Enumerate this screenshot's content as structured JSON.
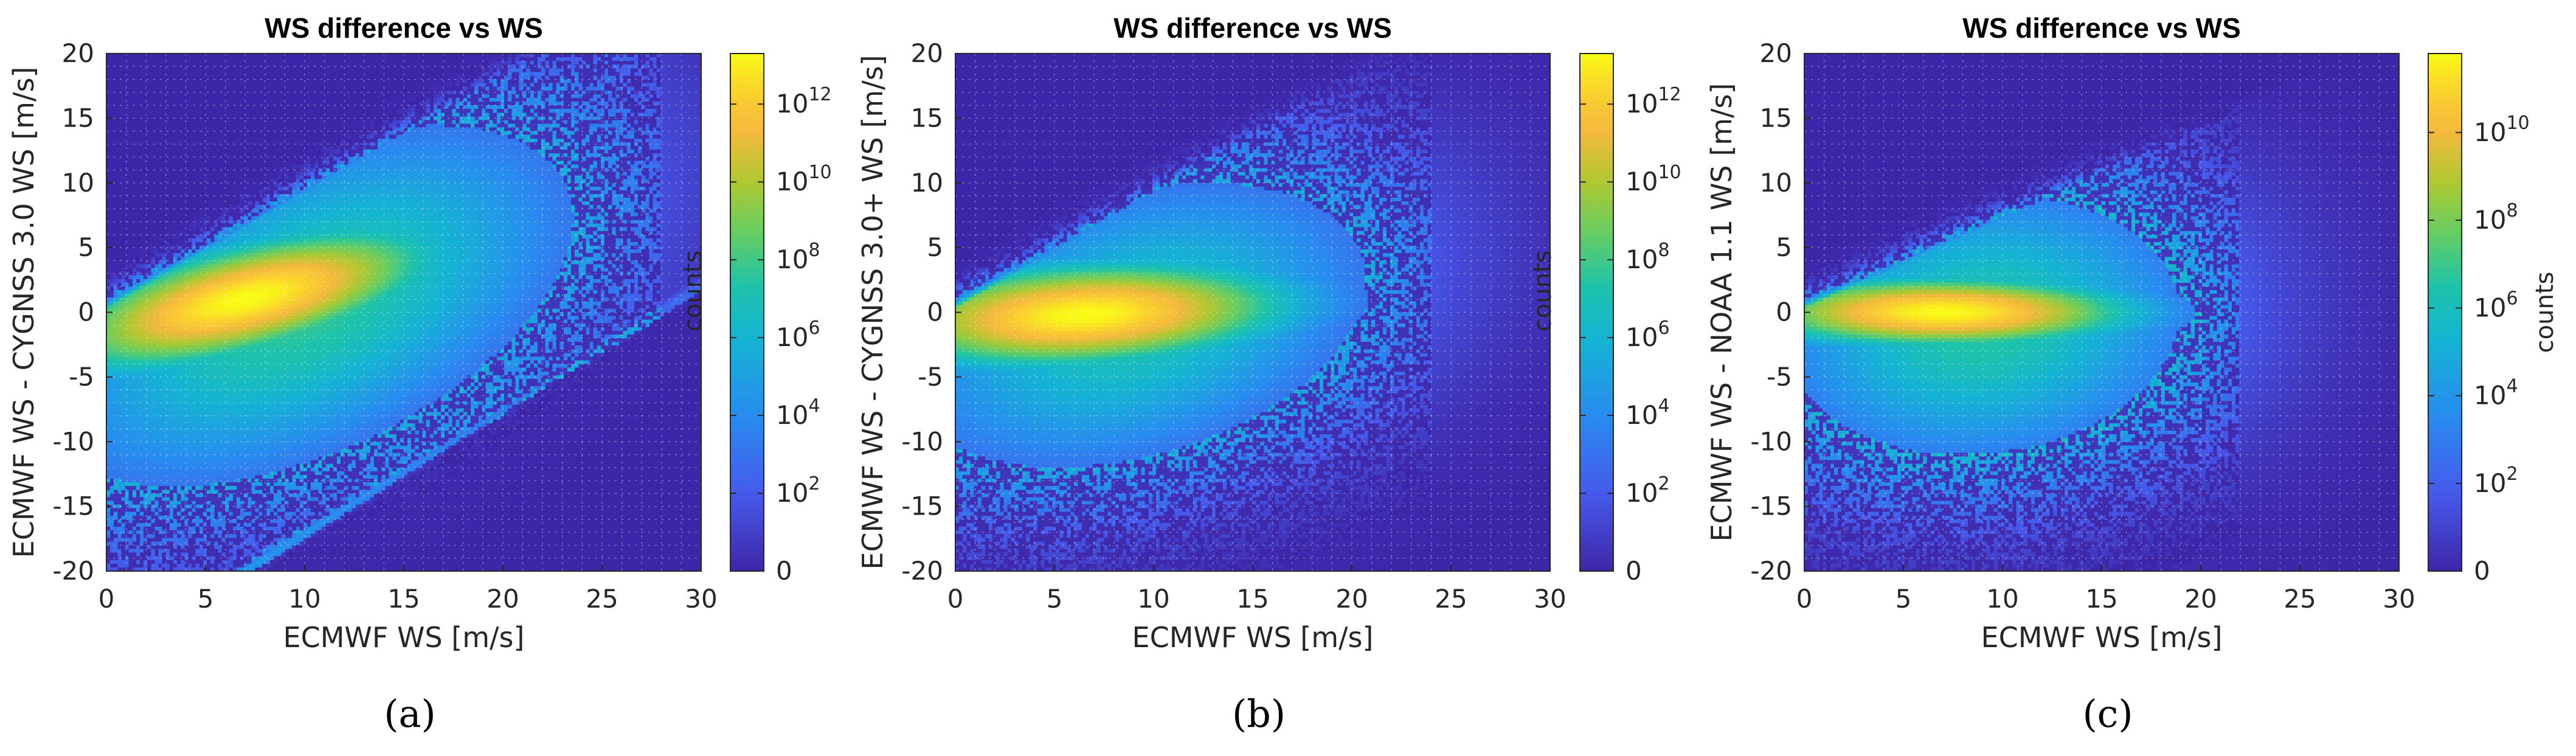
{
  "colors": {
    "background": "#3e2fa0",
    "grid": "#ffffff",
    "axis_text": "#262626",
    "caption": "#000000"
  },
  "colormap": "parula",
  "chart_data": [
    {
      "type": "heatmap",
      "panel": "a",
      "caption": "(a)",
      "title": "WS difference vs WS",
      "xlabel": "ECMWF WS [m/s]",
      "ylabel": "ECMWF WS - CYGNSS 3.0 WS [m/s]",
      "xlim": [
        0,
        30
      ],
      "ylim": [
        -20,
        20
      ],
      "xticks": [
        "0",
        "5",
        "10",
        "15",
        "20",
        "25",
        "30"
      ],
      "yticks": [
        "-20",
        "-15",
        "-10",
        "-5",
        "0",
        "5",
        "10",
        "15",
        "20"
      ],
      "colorbar": {
        "label": "counts",
        "scale": "log",
        "max_exponent": 13.3,
        "ticks": [
          {
            "base": "0",
            "exp": "",
            "value": 0
          },
          {
            "base": "10",
            "exp": "2",
            "value": 2
          },
          {
            "base": "10",
            "exp": "4",
            "value": 4
          },
          {
            "base": "10",
            "exp": "6",
            "value": 6
          },
          {
            "base": "10",
            "exp": "8",
            "value": 8
          },
          {
            "base": "10",
            "exp": "10",
            "value": 10
          },
          {
            "base": "10",
            "exp": "12",
            "value": 12
          }
        ]
      },
      "density_model": {
        "peak_log_counts": 12.8,
        "core": {
          "x": 7,
          "y": 1.0,
          "slope": 0.35,
          "sx": 6.5,
          "sy": 3.5
        },
        "spread": {
          "x": 10,
          "y": 0.5,
          "slope": 0.5,
          "sx": 10,
          "sy": 9,
          "level": 7.5
        },
        "lower_diagonal": {
          "x0": 7,
          "y0": -20,
          "x1": 30,
          "y1": 2,
          "level": 4.5
        },
        "upper_limit_slope": 0.9,
        "noise_extent_x": 28
      }
    },
    {
      "type": "heatmap",
      "panel": "b",
      "caption": "(b)",
      "title": "WS difference vs WS",
      "xlabel": "ECMWF WS [m/s]",
      "ylabel": "ECMWF WS - CYGNSS 3.0+ WS [m/s]",
      "xlim": [
        0,
        30
      ],
      "ylim": [
        -20,
        20
      ],
      "xticks": [
        "0",
        "5",
        "10",
        "15",
        "20",
        "25",
        "30"
      ],
      "yticks": [
        "-20",
        "-15",
        "-10",
        "-5",
        "0",
        "5",
        "10",
        "15",
        "20"
      ],
      "colorbar": {
        "label": "counts",
        "scale": "log",
        "max_exponent": 13.3,
        "ticks": [
          {
            "base": "0",
            "exp": "",
            "value": 0
          },
          {
            "base": "10",
            "exp": "2",
            "value": 2
          },
          {
            "base": "10",
            "exp": "4",
            "value": 4
          },
          {
            "base": "10",
            "exp": "6",
            "value": 6
          },
          {
            "base": "10",
            "exp": "8",
            "value": 8
          },
          {
            "base": "10",
            "exp": "10",
            "value": 10
          },
          {
            "base": "10",
            "exp": "12",
            "value": 12
          }
        ]
      },
      "density_model": {
        "peak_log_counts": 13.0,
        "core": {
          "x": 6.5,
          "y": -0.2,
          "slope": 0.08,
          "sx": 7,
          "sy": 3.2
        },
        "spread": {
          "x": 9,
          "y": -1,
          "slope": 0.3,
          "sx": 9,
          "sy": 8,
          "level": 7.0
        },
        "lower_diagonal": null,
        "upper_limit_slope": 0.9,
        "noise_extent_x": 24
      }
    },
    {
      "type": "heatmap",
      "panel": "c",
      "caption": "(c)",
      "title": "WS difference vs WS",
      "xlabel": "ECMWF WS [m/s]",
      "ylabel": "ECMWF WS - NOAA 1.1 WS [m/s]",
      "xlim": [
        0,
        30
      ],
      "ylim": [
        -20,
        20
      ],
      "xticks": [
        "0",
        "5",
        "10",
        "15",
        "20",
        "25",
        "30"
      ],
      "yticks": [
        "-20",
        "-15",
        "-10",
        "-5",
        "0",
        "5",
        "10",
        "15",
        "20"
      ],
      "colorbar": {
        "label": "counts",
        "scale": "log",
        "max_exponent": 11.8,
        "ticks": [
          {
            "base": "0",
            "exp": "",
            "value": 0
          },
          {
            "base": "10",
            "exp": "2",
            "value": 2
          },
          {
            "base": "10",
            "exp": "4",
            "value": 4
          },
          {
            "base": "10",
            "exp": "6",
            "value": 6
          },
          {
            "base": "10",
            "exp": "8",
            "value": 8
          },
          {
            "base": "10",
            "exp": "10",
            "value": 10
          }
        ]
      },
      "density_model": {
        "peak_log_counts": 11.5,
        "core": {
          "x": 7,
          "y": 0,
          "slope": 0.0,
          "sx": 6.5,
          "sy": 2.2
        },
        "spread": {
          "x": 9,
          "y": -1,
          "slope": 0.1,
          "sx": 8,
          "sy": 8,
          "level": 6.5
        },
        "lower_diagonal": null,
        "upper_limit_slope": 0.7,
        "noise_extent_x": 22
      }
    }
  ]
}
